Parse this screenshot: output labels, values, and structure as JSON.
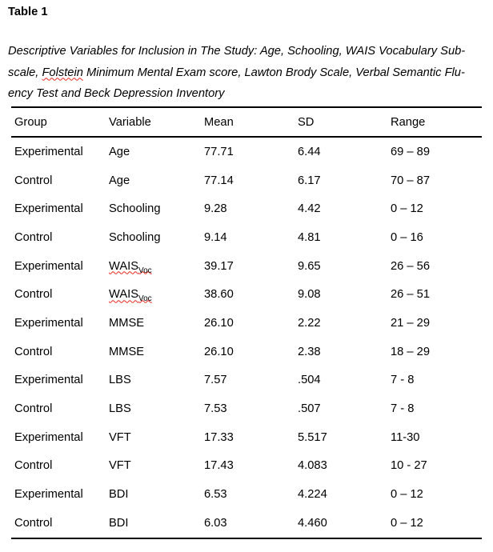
{
  "title": "Table 1",
  "caption": {
    "line1": "Descriptive Variables for Inclusion in The Study: Age, Schooling, WAIS Vocabulary Sub-",
    "line2_pre": "scale, ",
    "line2_misspelled_word": "Folstein",
    "line2_post": " Minimum Mental Exam score, Lawton Brody Scale, Verbal Semantic Flu-",
    "line3": "ency Test and Beck Depression Inventory"
  },
  "table": {
    "columns": [
      "Group",
      "Variable",
      "Mean",
      "SD",
      "Range"
    ],
    "rows": [
      {
        "group": "Experimental",
        "variable": "Age",
        "mean": "77.71",
        "sd": "6.44",
        "range": "69 – 89"
      },
      {
        "group": "Control",
        "variable": "Age",
        "mean": "77.14",
        "sd": "6.17",
        "range": "70 – 87"
      },
      {
        "group": "Experimental",
        "variable": "Schooling",
        "mean": "9.28",
        "sd": "4.42",
        "range": "0 – 12"
      },
      {
        "group": "Control",
        "variable": "Schooling",
        "mean": "9.14",
        "sd": "4.81",
        "range": "0 – 16"
      },
      {
        "group": "Experimental",
        "variable": "WAIS",
        "variable_sub": "Voc",
        "variable_misspelled": true,
        "mean": "39.17",
        "sd": "9.65",
        "range": "26 – 56"
      },
      {
        "group": "Control",
        "variable": "WAIS",
        "variable_sub": "Voc",
        "variable_misspelled": true,
        "mean": "38.60",
        "sd": "9.08",
        "range": "26 – 51"
      },
      {
        "group": "Experimental",
        "variable": "MMSE",
        "mean": "26.10",
        "sd": "2.22",
        "range": "21 – 29"
      },
      {
        "group": "Control",
        "variable": "MMSE",
        "mean": "26.10",
        "sd": "2.38",
        "range": "18 – 29"
      },
      {
        "group": "Experimental",
        "variable": "LBS",
        "mean": "7.57",
        "sd": ".504",
        "range": "7 - 8"
      },
      {
        "group": "Control",
        "variable": "LBS",
        "mean": "7.53",
        "sd": ".507",
        "range": "7 - 8"
      },
      {
        "group": "Experimental",
        "variable": "VFT",
        "mean": "17.33",
        "sd": "5.517",
        "range": "11-30"
      },
      {
        "group": "Control",
        "variable": "VFT",
        "mean": "17.43",
        "sd": "4.083",
        "range": "10 - 27"
      },
      {
        "group": "Experimental",
        "variable": "BDI",
        "mean": "6.53",
        "sd": "4.224",
        "range": "0 – 12"
      },
      {
        "group": "Control",
        "variable": "BDI",
        "mean": "6.03",
        "sd": "4.460",
        "range": "0 – 12"
      }
    ]
  },
  "colors": {
    "text": "#000000",
    "background": "#ffffff",
    "rule": "#000000",
    "spellcheck_underline": "#e8261b"
  }
}
